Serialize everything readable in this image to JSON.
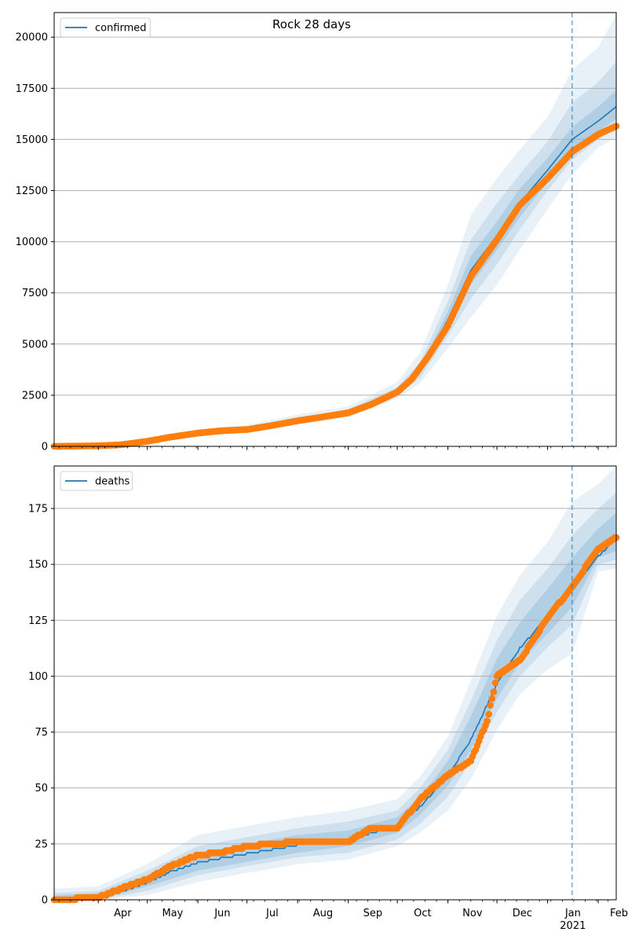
{
  "figure": {
    "title": "Rock 28 days"
  },
  "colors": {
    "model": "#1f77b4",
    "observed": "#ff7f0e",
    "band": "#1f77b4",
    "grid": "#b0b0b0"
  },
  "x_axis": {
    "months": [
      "Apr",
      "May",
      "Jun",
      "Jul",
      "Aug",
      "Sep",
      "Oct",
      "Nov",
      "Dec",
      "Jan",
      "Feb"
    ],
    "year_label": "2021",
    "start": "2020-03-05",
    "end": "2021-02-12",
    "forecast_start": "2021-01-16"
  },
  "chart_data": [
    {
      "type": "line",
      "legend": "confirmed",
      "legend_position": "top-left",
      "grid": "horizontal",
      "ylim": [
        0,
        21200
      ],
      "yticks": [
        0,
        2500,
        5000,
        7500,
        10000,
        12500,
        15000,
        17500,
        20000
      ],
      "series": [
        {
          "name": "confirmed",
          "kind": "model",
          "x": [
            "2020-03-05",
            "2020-04-01",
            "2020-05-01",
            "2020-06-01",
            "2020-07-01",
            "2020-08-01",
            "2020-09-01",
            "2020-10-01",
            "2020-10-15",
            "2020-11-01",
            "2020-11-15",
            "2020-12-01",
            "2020-12-15",
            "2021-01-01",
            "2021-01-16",
            "2021-02-01",
            "2021-02-12"
          ],
          "y": [
            0,
            30,
            200,
            650,
            860,
            1300,
            1650,
            2700,
            3700,
            6200,
            8600,
            10300,
            11900,
            13500,
            15000,
            15900,
            16600
          ]
        },
        {
          "name": "observed",
          "kind": "observed",
          "x": [
            "2020-03-05",
            "2020-04-01",
            "2020-04-15",
            "2020-05-01",
            "2020-05-15",
            "2020-06-01",
            "2020-06-15",
            "2020-07-01",
            "2020-07-15",
            "2020-08-01",
            "2020-08-15",
            "2020-09-01",
            "2020-09-15",
            "2020-10-01",
            "2020-10-10",
            "2020-10-20",
            "2020-11-01",
            "2020-11-15",
            "2020-12-01",
            "2020-12-15",
            "2021-01-01",
            "2021-01-16",
            "2021-02-01",
            "2021-02-12"
          ],
          "y": [
            0,
            30,
            80,
            250,
            450,
            650,
            760,
            820,
            1000,
            1250,
            1420,
            1640,
            2050,
            2650,
            3300,
            4400,
            5900,
            8300,
            10100,
            11800,
            13100,
            14400,
            15250,
            15650
          ]
        }
      ],
      "bands": {
        "x": [
          "2020-03-05",
          "2020-04-01",
          "2020-05-01",
          "2020-06-01",
          "2020-07-01",
          "2020-08-01",
          "2020-09-01",
          "2020-10-01",
          "2020-10-15",
          "2020-11-01",
          "2020-11-15",
          "2020-12-01",
          "2020-12-15",
          "2021-01-01",
          "2021-01-16",
          "2021-02-01",
          "2021-02-12"
        ],
        "outer_lower": [
          0,
          10,
          120,
          480,
          680,
          1080,
          1420,
          2350,
          3100,
          4800,
          6300,
          7900,
          9600,
          11600,
          13300,
          14600,
          15100
        ],
        "outer_upper": [
          0,
          60,
          300,
          820,
          1050,
          1550,
          1950,
          3150,
          4600,
          7900,
          11300,
          13100,
          14500,
          16100,
          18400,
          19500,
          21100
        ],
        "mid_lower": [
          0,
          15,
          150,
          550,
          760,
          1180,
          1520,
          2500,
          3350,
          5400,
          7200,
          8900,
          10600,
          12500,
          14000,
          15000,
          15600
        ],
        "mid_upper": [
          0,
          45,
          250,
          750,
          960,
          1420,
          1800,
          2900,
          4100,
          7100,
          10100,
          11900,
          13300,
          14900,
          16800,
          17800,
          18800
        ],
        "inner_lower": [
          0,
          22,
          175,
          600,
          810,
          1240,
          1590,
          2600,
          3550,
          5800,
          7900,
          9600,
          11200,
          12900,
          14500,
          15400,
          16000
        ],
        "inner_upper": [
          0,
          38,
          225,
          700,
          910,
          1360,
          1710,
          2800,
          3850,
          6600,
          9300,
          11000,
          12600,
          14100,
          15600,
          16600,
          17400
        ]
      }
    },
    {
      "type": "line",
      "legend": "deaths",
      "legend_position": "top-left",
      "grid": "horizontal",
      "ylim": [
        0,
        194
      ],
      "yticks": [
        0,
        25,
        50,
        75,
        100,
        125,
        150,
        175
      ],
      "series": [
        {
          "name": "deaths",
          "kind": "model",
          "x": [
            "2020-03-05",
            "2020-04-01",
            "2020-04-15",
            "2020-05-01",
            "2020-05-15",
            "2020-06-01",
            "2020-06-15",
            "2020-07-01",
            "2020-08-01",
            "2020-09-01",
            "2020-10-01",
            "2020-10-15",
            "2020-11-01",
            "2020-11-15",
            "2020-12-01",
            "2020-12-15",
            "2021-01-01",
            "2021-01-16",
            "2021-02-01",
            "2021-02-12"
          ],
          "y": [
            0,
            1,
            4,
            8,
            13,
            17,
            19,
            21,
            25,
            27,
            34,
            42,
            56,
            72,
            97,
            113,
            127,
            139,
            154,
            162
          ]
        },
        {
          "name": "observed",
          "kind": "observed",
          "x": [
            "2020-03-05",
            "2020-04-01",
            "2020-04-15",
            "2020-05-01",
            "2020-05-15",
            "2020-06-01",
            "2020-06-15",
            "2020-07-01",
            "2020-08-01",
            "2020-09-01",
            "2020-09-15",
            "2020-10-01",
            "2020-10-15",
            "2020-11-01",
            "2020-11-15",
            "2020-11-25",
            "2020-12-01",
            "2020-12-15",
            "2021-01-01",
            "2021-01-16",
            "2021-02-01",
            "2021-02-12"
          ],
          "y": [
            0,
            1,
            5,
            9,
            15,
            20,
            21,
            24,
            26,
            26,
            32,
            32,
            45,
            56,
            62,
            80,
            100,
            107,
            126,
            140,
            157,
            162
          ]
        }
      ],
      "bands": {
        "x": [
          "2020-03-05",
          "2020-04-01",
          "2020-05-01",
          "2020-06-01",
          "2020-07-01",
          "2020-08-01",
          "2020-09-01",
          "2020-10-01",
          "2020-10-15",
          "2020-11-01",
          "2020-11-15",
          "2020-12-01",
          "2020-12-15",
          "2021-01-01",
          "2021-01-16",
          "2021-02-01",
          "2021-02-12"
        ],
        "outer_lower": [
          0,
          0,
          2,
          8,
          12,
          16,
          18,
          24,
          30,
          40,
          54,
          76,
          92,
          103,
          110,
          147,
          148
        ],
        "outer_upper": [
          5,
          6,
          16,
          29,
          33,
          37,
          40,
          45,
          55,
          73,
          98,
          127,
          145,
          160,
          178,
          186,
          194
        ],
        "mid_lower": [
          0,
          0,
          4,
          11,
          15,
          19,
          21,
          27,
          34,
          46,
          62,
          84,
          100,
          113,
          123,
          150,
          152
        ],
        "mid_upper": [
          3,
          4,
          13,
          24,
          28,
          32,
          35,
          40,
          50,
          67,
          89,
          116,
          134,
          148,
          163,
          175,
          182
        ],
        "inner_lower": [
          0,
          0,
          6,
          13,
          17,
          21,
          24,
          30,
          38,
          51,
          67,
          90,
          106,
          119,
          131,
          153,
          156
        ],
        "inner_upper": [
          2,
          3,
          11,
          21,
          25,
          29,
          31,
          37,
          46,
          62,
          82,
          108,
          124,
          139,
          153,
          166,
          173
        ]
      }
    }
  ]
}
